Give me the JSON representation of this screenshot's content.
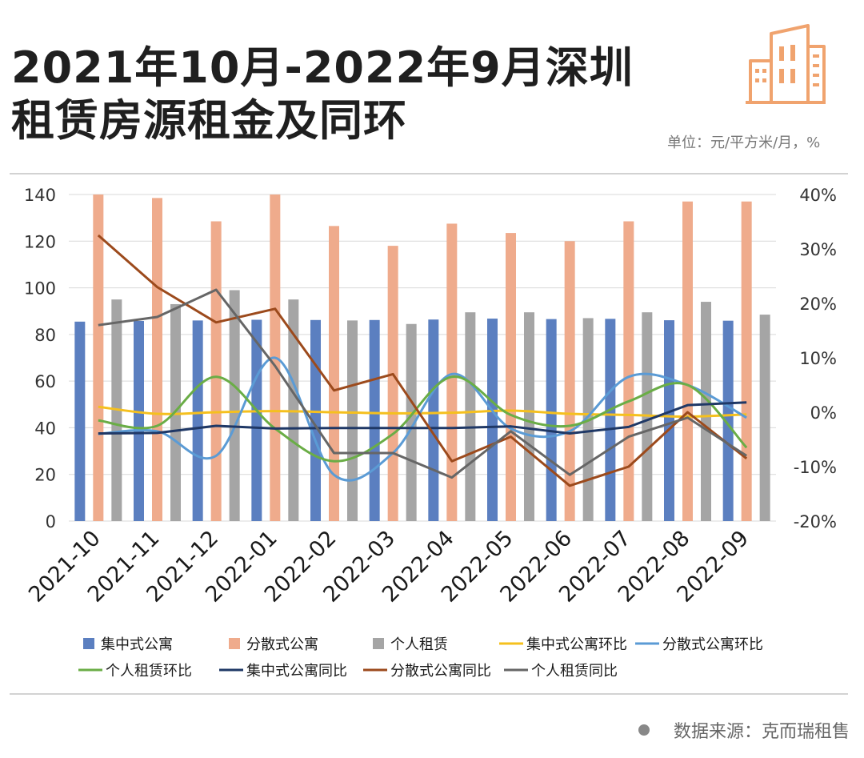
{
  "title_lines": [
    "2021年10月-2022年9月深圳",
    "租赁房源租金及同环"
  ],
  "unit": "单位：元/平方米/月，%",
  "source": "数据来源：克而瑞租售",
  "icon": "building-icon",
  "colors": {
    "bar_central": "#5b7fc0",
    "bar_scattered": "#efab8c",
    "bar_personal": "#a5a5a5",
    "line_central_mom": "#f5c01e",
    "line_scattered_mom": "#5b9bd5",
    "line_personal_mom": "#6aad46",
    "line_central_yoy": "#1f3866",
    "line_scattered_yoy": "#9c4a1c",
    "line_personal_yoy": "#666666",
    "accent_icon": "#f0a36e"
  },
  "chart_data": {
    "type": "bar",
    "categories": [
      "2021-10",
      "2021-11",
      "2021-12",
      "2022-01",
      "2022-02",
      "2022-03",
      "2022-04",
      "2022-05",
      "2022-06",
      "2022-07",
      "2022-08",
      "2022-09"
    ],
    "y_left": {
      "min": 0,
      "max": 140,
      "ticks": [
        "0",
        "20",
        "40",
        "60",
        "80",
        "100",
        "120",
        "140"
      ]
    },
    "y_right": {
      "min": -20,
      "max": 40,
      "ticks": [
        "-20%",
        "-10%",
        "0%",
        "10%",
        "20%",
        "30%",
        "40%"
      ]
    },
    "grid": true,
    "legend_position": "bottom",
    "bar_series": [
      {
        "name": "集中式公寓",
        "color_key": "bar_central",
        "values": [
          85.5,
          85.8,
          86.0,
          86.3,
          86.2,
          86.2,
          86.4,
          86.8,
          86.6,
          86.7,
          86.1,
          85.9
        ]
      },
      {
        "name": "分散式公寓",
        "color_key": "bar_scattered",
        "values": [
          140.0,
          138.5,
          128.5,
          140.0,
          126.5,
          118.0,
          127.5,
          123.5,
          120.0,
          128.5,
          137.0,
          137.0
        ]
      },
      {
        "name": "个人租赁",
        "color_key": "bar_personal",
        "values": [
          95.0,
          93.0,
          99.0,
          95.0,
          86.0,
          84.5,
          89.5,
          89.5,
          87.0,
          89.5,
          94.0,
          88.5
        ]
      }
    ],
    "line_series": [
      {
        "name": "集中式公寓环比",
        "color_key": "line_central_mom",
        "smooth": true,
        "values": [
          1.0,
          -0.3,
          0.0,
          0.2,
          0.0,
          -0.2,
          -0.1,
          0.3,
          -0.3,
          -0.5,
          -0.8,
          -0.4
        ]
      },
      {
        "name": "分散式公寓环比",
        "color_key": "line_scattered_mom",
        "smooth": true,
        "values": [
          -4.0,
          -3.5,
          -8.0,
          10.0,
          -11.5,
          -7.5,
          7.0,
          -3.0,
          -3.5,
          6.5,
          5.0,
          -1.0
        ]
      },
      {
        "name": "个人租赁环比",
        "color_key": "line_personal_mom",
        "smooth": true,
        "values": [
          -1.5,
          -2.5,
          6.5,
          -3.0,
          -9.0,
          -4.0,
          6.5,
          -0.5,
          -2.5,
          2.0,
          5.0,
          -6.5
        ]
      },
      {
        "name": "集中式公寓同比",
        "color_key": "line_central_yoy",
        "smooth": false,
        "values": [
          -3.9,
          -3.8,
          -2.5,
          -3.0,
          -2.9,
          -2.9,
          -2.9,
          -2.6,
          -3.9,
          -2.7,
          1.3,
          1.8
        ]
      },
      {
        "name": "分散式公寓同比",
        "color_key": "line_scattered_yoy",
        "smooth": false,
        "values": [
          32.5,
          23.0,
          16.5,
          19.0,
          4.0,
          7.0,
          -9.0,
          -4.5,
          -13.5,
          -10.0,
          0.0,
          -8.5
        ]
      },
      {
        "name": "个人租赁同比",
        "color_key": "line_personal_yoy",
        "smooth": false,
        "values": [
          16.0,
          17.5,
          22.5,
          8.5,
          -7.5,
          -7.5,
          -12.0,
          -3.5,
          -11.5,
          -4.5,
          -1.0,
          -8.0
        ]
      }
    ]
  }
}
